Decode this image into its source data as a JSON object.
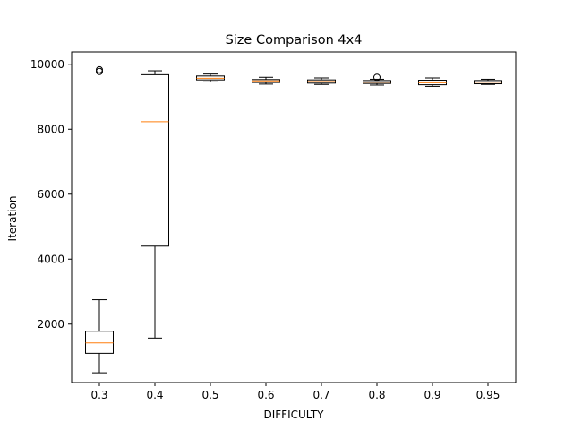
{
  "chart_data": {
    "type": "boxplot",
    "title": "Size Comparison 4x4",
    "xlabel": "DIFFICULTY",
    "ylabel": "Iteration",
    "ylim": [
      200,
      10380
    ],
    "yticks": [
      2000,
      4000,
      6000,
      8000,
      10000
    ],
    "grid": false,
    "box_color": "#000000",
    "median_color": "#ff7f0e",
    "categories": [
      "0.3",
      "0.4",
      "0.5",
      "0.6",
      "0.7",
      "0.8",
      "0.9",
      "0.95"
    ],
    "boxes": [
      {
        "label": "0.3",
        "whisker_low": 500,
        "q1": 1100,
        "median": 1420,
        "q3": 1780,
        "whisker_high": 2750,
        "fliers": [
          9780,
          9830
        ]
      },
      {
        "label": "0.4",
        "whisker_low": 1570,
        "q1": 4400,
        "median": 8230,
        "q3": 9680,
        "whisker_high": 9800,
        "fliers": []
      },
      {
        "label": "0.5",
        "whisker_low": 9460,
        "q1": 9520,
        "median": 9570,
        "q3": 9640,
        "whisker_high": 9700,
        "fliers": []
      },
      {
        "label": "0.6",
        "whisker_low": 9390,
        "q1": 9440,
        "median": 9490,
        "q3": 9530,
        "whisker_high": 9600,
        "fliers": []
      },
      {
        "label": "0.7",
        "whisker_low": 9380,
        "q1": 9420,
        "median": 9470,
        "q3": 9520,
        "whisker_high": 9580,
        "fliers": []
      },
      {
        "label": "0.8",
        "whisker_low": 9360,
        "q1": 9410,
        "median": 9450,
        "q3": 9500,
        "whisker_high": 9540,
        "fliers": [
          9600
        ]
      },
      {
        "label": "0.9",
        "whisker_low": 9320,
        "q1": 9370,
        "median": 9430,
        "q3": 9510,
        "whisker_high": 9580,
        "fliers": []
      },
      {
        "label": "0.95",
        "whisker_low": 9380,
        "q1": 9400,
        "median": 9450,
        "q3": 9500,
        "whisker_high": 9540,
        "fliers": []
      }
    ]
  }
}
